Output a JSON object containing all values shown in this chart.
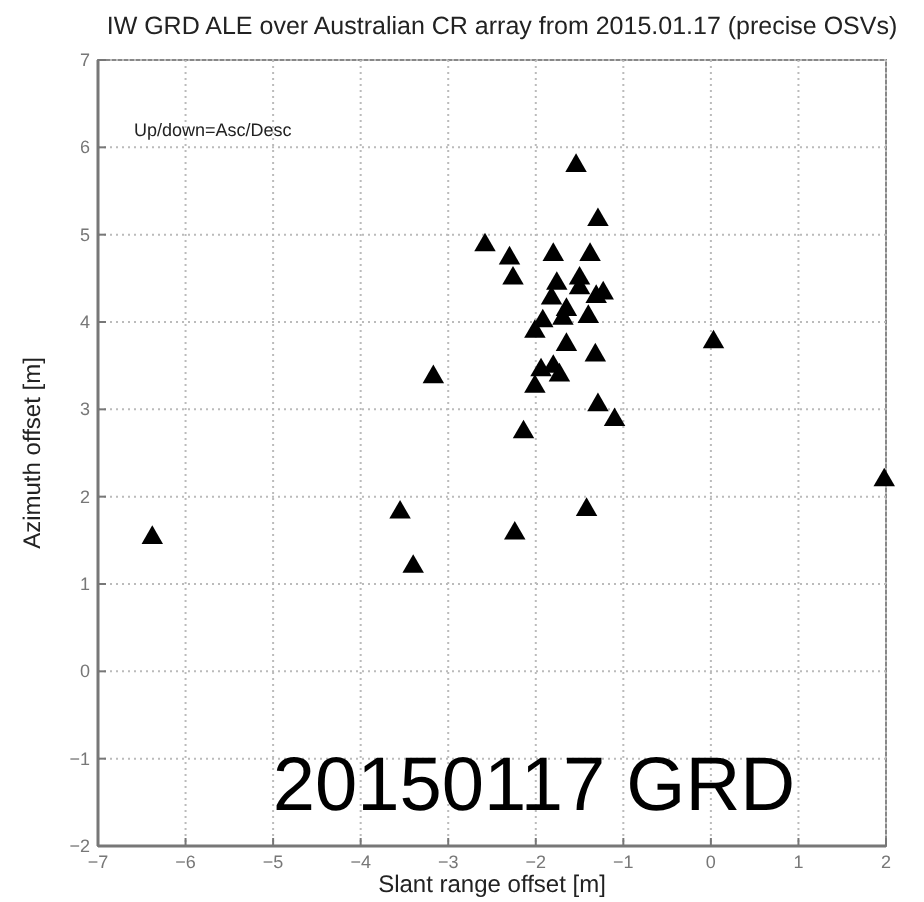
{
  "chart_data": {
    "type": "scatter",
    "title": "IW GRD ALE over Australian CR array from 2015.01.17 (precise OSVs)",
    "xlabel": "Slant range offset [m]",
    "ylabel": "Azimuth offset [m]",
    "annotations": [
      "Up/down=Asc/Desc",
      "20150117 GRD"
    ],
    "xlim": [
      -7,
      2
    ],
    "ylim": [
      -2,
      7
    ],
    "xticks": [
      -7,
      -6,
      -5,
      -4,
      -3,
      -2,
      -1,
      0,
      1,
      2
    ],
    "yticks": [
      -2,
      -1,
      0,
      1,
      2,
      3,
      4,
      5,
      6,
      7
    ],
    "grid": true,
    "marker": "triangle",
    "series": [
      {
        "color": "#000000",
        "x": [
          -6.38,
          -3.55,
          -3.4,
          -3.17,
          -2.58,
          -2.3,
          -1.8,
          -1.38,
          -2.26,
          -1.76,
          -1.5,
          -1.5,
          -1.23,
          -1.31,
          -1.82,
          -1.65,
          -1.69,
          -1.4,
          -1.92,
          -2.01,
          -1.65,
          -1.32,
          -1.94,
          -1.8,
          -1.73,
          -2.01,
          -1.29,
          -1.1,
          -2.14,
          0.03,
          1.98,
          -1.42,
          -2.24,
          -1.54,
          -1.29
        ],
        "values": [
          1.53,
          1.82,
          1.2,
          3.37,
          4.88,
          4.73,
          4.77,
          4.77,
          4.5,
          4.44,
          4.5,
          4.39,
          4.33,
          4.29,
          4.27,
          4.14,
          4.04,
          4.06,
          4.01,
          3.89,
          3.74,
          3.62,
          3.45,
          3.49,
          3.39,
          3.26,
          3.05,
          2.88,
          2.74,
          3.77,
          2.19,
          1.85,
          1.58,
          5.79,
          5.17
        ]
      }
    ]
  }
}
